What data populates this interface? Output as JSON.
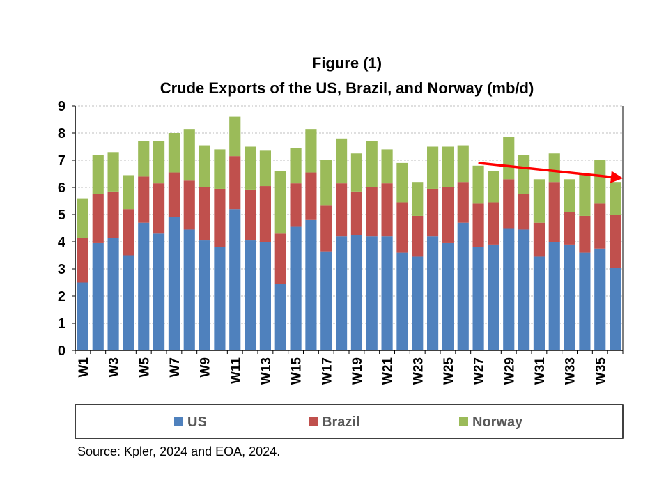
{
  "chart_data": {
    "type": "bar",
    "stacked": true,
    "title": "Figure (1)",
    "subtitle": "Crude Exports of the US, Brazil, and Norway (mb/d)",
    "xlabel": "",
    "ylabel": "",
    "ylim": [
      0,
      9
    ],
    "yticks": [
      0,
      1,
      2,
      3,
      4,
      5,
      6,
      7,
      8,
      9
    ],
    "grid": true,
    "legend_position": "bottom",
    "categories": [
      "W1",
      "W2",
      "W3",
      "W4",
      "W5",
      "W6",
      "W7",
      "W8",
      "W9",
      "W10",
      "W11",
      "W12",
      "W13",
      "W14",
      "W15",
      "W16",
      "W17",
      "W18",
      "W19",
      "W20",
      "W21",
      "W22",
      "W23",
      "W24",
      "W25",
      "W26",
      "W27",
      "W28",
      "W29",
      "W30",
      "W31",
      "W32",
      "W33",
      "W34",
      "W35",
      "W36"
    ],
    "visible_tick_labels": [
      "W1",
      "W3",
      "W5",
      "W7",
      "W9",
      "W11",
      "W13",
      "W15",
      "W17",
      "W19",
      "W21",
      "W23",
      "W25",
      "W27",
      "W29",
      "W31",
      "W33",
      "W35"
    ],
    "series": [
      {
        "name": "US",
        "color": "#4F81BD",
        "values": [
          2.5,
          3.95,
          4.15,
          3.5,
          4.7,
          4.3,
          4.9,
          4.45,
          4.05,
          3.8,
          5.2,
          4.05,
          4.0,
          2.45,
          4.55,
          4.8,
          3.65,
          4.2,
          4.25,
          4.2,
          4.2,
          3.6,
          3.45,
          4.2,
          3.95,
          4.7,
          3.8,
          3.9,
          4.5,
          4.45,
          3.45,
          4.0,
          3.9,
          3.6,
          3.75,
          3.05
        ]
      },
      {
        "name": "Brazil",
        "color": "#C0504D",
        "values": [
          1.65,
          1.8,
          1.7,
          1.7,
          1.7,
          1.85,
          1.65,
          1.8,
          1.95,
          2.15,
          1.95,
          1.85,
          2.05,
          1.85,
          1.6,
          1.75,
          1.7,
          1.95,
          1.6,
          1.8,
          1.95,
          1.85,
          1.5,
          1.75,
          2.05,
          1.5,
          1.6,
          1.55,
          1.8,
          1.3,
          1.25,
          2.2,
          1.2,
          1.35,
          1.65,
          1.95
        ]
      },
      {
        "name": "Norway",
        "color": "#9BBB59",
        "values": [
          1.45,
          1.45,
          1.45,
          1.25,
          1.3,
          1.55,
          1.45,
          1.9,
          1.55,
          1.45,
          1.45,
          1.6,
          1.3,
          2.3,
          1.3,
          1.6,
          1.65,
          1.65,
          1.4,
          1.7,
          1.25,
          1.45,
          1.25,
          1.55,
          1.5,
          1.35,
          1.4,
          1.15,
          1.55,
          1.45,
          1.6,
          1.05,
          1.2,
          1.55,
          1.6,
          1.2
        ]
      }
    ],
    "annotation": {
      "type": "trend-arrow",
      "color": "#FF0000",
      "from": {
        "x": "W27",
        "y": 6.9
      },
      "to": {
        "x": "W36",
        "y": 6.35
      }
    }
  },
  "source": "Source: Kpler, 2024 and EOA, 2024."
}
